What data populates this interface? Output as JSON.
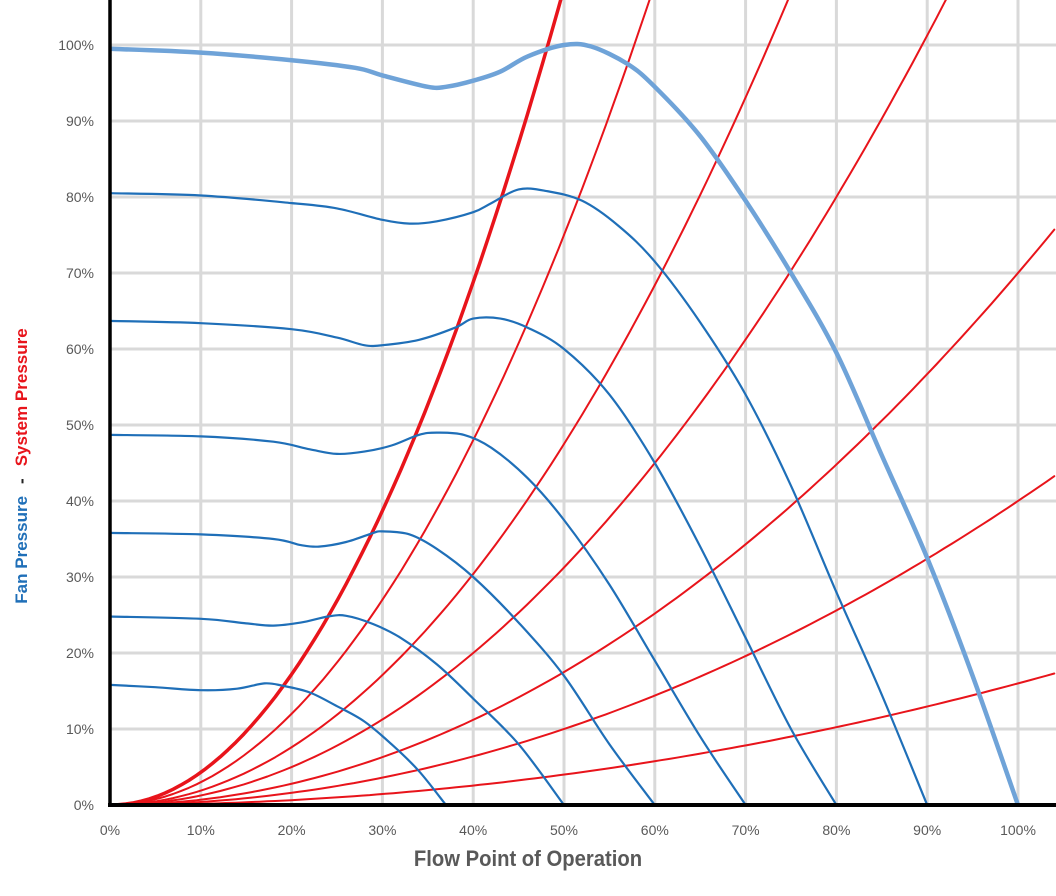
{
  "chart_data": {
    "type": "line",
    "xlabel": "Flow Point of Operation",
    "ylabel_parts": {
      "fan_word": "Fan",
      "fan_pressure": "Pressure",
      "separator": "-",
      "system_word": "System",
      "system_pressure": "Pressure"
    },
    "xlim": [
      0,
      1.04
    ],
    "ylim": [
      0,
      1.05
    ],
    "x_ticks": [
      0,
      0.1,
      0.2,
      0.3,
      0.4,
      0.5,
      0.6,
      0.7,
      0.8,
      0.9,
      1.0
    ],
    "x_tick_labels": [
      "0%",
      "10%",
      "20%",
      "30%",
      "40%",
      "50%",
      "60%",
      "70%",
      "80%",
      "90%",
      "100%"
    ],
    "y_ticks": [
      0,
      0.1,
      0.2,
      0.3,
      0.4,
      0.5,
      0.6,
      0.7,
      0.8,
      0.9,
      1.0
    ],
    "y_tick_labels": [
      "0%",
      "10%",
      "20%",
      "30%",
      "40%",
      "50%",
      "60%",
      "70%",
      "80%",
      "90%",
      "100%"
    ],
    "grid": true,
    "colors": {
      "fan": "#1f6fb8",
      "fan_full": "#6fa3d8",
      "system": "#e8141b",
      "grid": "#d9d9d9",
      "axis": "#000000"
    },
    "series": [
      {
        "kind": "fan",
        "emphasis": true,
        "points": [
          [
            0,
            0.995
          ],
          [
            0.1,
            0.99
          ],
          [
            0.2,
            0.98
          ],
          [
            0.27,
            0.97
          ],
          [
            0.3,
            0.96
          ],
          [
            0.35,
            0.945
          ],
          [
            0.37,
            0.945
          ],
          [
            0.4,
            0.953
          ],
          [
            0.43,
            0.965
          ],
          [
            0.46,
            0.985
          ],
          [
            0.5,
            1.0
          ],
          [
            0.53,
            0.998
          ],
          [
            0.57,
            0.975
          ],
          [
            0.6,
            0.945
          ],
          [
            0.65,
            0.88
          ],
          [
            0.7,
            0.795
          ],
          [
            0.75,
            0.7
          ],
          [
            0.8,
            0.595
          ],
          [
            0.85,
            0.46
          ],
          [
            0.9,
            0.325
          ],
          [
            0.95,
            0.17
          ],
          [
            1.0,
            0.0
          ]
        ]
      },
      {
        "kind": "fan",
        "points": [
          [
            0,
            0.805
          ],
          [
            0.1,
            0.802
          ],
          [
            0.2,
            0.792
          ],
          [
            0.25,
            0.785
          ],
          [
            0.3,
            0.77
          ],
          [
            0.33,
            0.765
          ],
          [
            0.36,
            0.768
          ],
          [
            0.4,
            0.78
          ],
          [
            0.42,
            0.792
          ],
          [
            0.45,
            0.81
          ],
          [
            0.48,
            0.808
          ],
          [
            0.52,
            0.795
          ],
          [
            0.56,
            0.762
          ],
          [
            0.6,
            0.715
          ],
          [
            0.65,
            0.635
          ],
          [
            0.7,
            0.54
          ],
          [
            0.75,
            0.42
          ],
          [
            0.8,
            0.28
          ],
          [
            0.85,
            0.145
          ],
          [
            0.9,
            0.0
          ]
        ]
      },
      {
        "kind": "fan",
        "points": [
          [
            0,
            0.637
          ],
          [
            0.1,
            0.634
          ],
          [
            0.2,
            0.626
          ],
          [
            0.25,
            0.615
          ],
          [
            0.28,
            0.605
          ],
          [
            0.3,
            0.605
          ],
          [
            0.34,
            0.612
          ],
          [
            0.38,
            0.628
          ],
          [
            0.4,
            0.64
          ],
          [
            0.43,
            0.64
          ],
          [
            0.46,
            0.628
          ],
          [
            0.5,
            0.6
          ],
          [
            0.55,
            0.54
          ],
          [
            0.6,
            0.45
          ],
          [
            0.65,
            0.34
          ],
          [
            0.7,
            0.22
          ],
          [
            0.75,
            0.1
          ],
          [
            0.8,
            0.0
          ]
        ]
      },
      {
        "kind": "fan",
        "points": [
          [
            0,
            0.487
          ],
          [
            0.1,
            0.485
          ],
          [
            0.18,
            0.478
          ],
          [
            0.22,
            0.468
          ],
          [
            0.25,
            0.462
          ],
          [
            0.28,
            0.465
          ],
          [
            0.31,
            0.473
          ],
          [
            0.34,
            0.487
          ],
          [
            0.36,
            0.49
          ],
          [
            0.39,
            0.487
          ],
          [
            0.42,
            0.47
          ],
          [
            0.46,
            0.43
          ],
          [
            0.5,
            0.375
          ],
          [
            0.55,
            0.29
          ],
          [
            0.6,
            0.19
          ],
          [
            0.65,
            0.09
          ],
          [
            0.7,
            0.0
          ]
        ]
      },
      {
        "kind": "fan",
        "points": [
          [
            0,
            0.358
          ],
          [
            0.1,
            0.356
          ],
          [
            0.18,
            0.35
          ],
          [
            0.21,
            0.342
          ],
          [
            0.23,
            0.34
          ],
          [
            0.26,
            0.346
          ],
          [
            0.29,
            0.358
          ],
          [
            0.3,
            0.36
          ],
          [
            0.33,
            0.356
          ],
          [
            0.36,
            0.337
          ],
          [
            0.4,
            0.3
          ],
          [
            0.45,
            0.24
          ],
          [
            0.5,
            0.17
          ],
          [
            0.55,
            0.08
          ],
          [
            0.6,
            0.0
          ]
        ]
      },
      {
        "kind": "fan",
        "points": [
          [
            0,
            0.248
          ],
          [
            0.1,
            0.245
          ],
          [
            0.15,
            0.239
          ],
          [
            0.18,
            0.236
          ],
          [
            0.21,
            0.24
          ],
          [
            0.24,
            0.248
          ],
          [
            0.26,
            0.249
          ],
          [
            0.29,
            0.238
          ],
          [
            0.32,
            0.22
          ],
          [
            0.36,
            0.185
          ],
          [
            0.4,
            0.14
          ],
          [
            0.45,
            0.08
          ],
          [
            0.5,
            0.0
          ]
        ]
      },
      {
        "kind": "fan",
        "points": [
          [
            0,
            0.158
          ],
          [
            0.05,
            0.155
          ],
          [
            0.1,
            0.151
          ],
          [
            0.14,
            0.153
          ],
          [
            0.17,
            0.16
          ],
          [
            0.19,
            0.157
          ],
          [
            0.22,
            0.148
          ],
          [
            0.25,
            0.13
          ],
          [
            0.28,
            0.11
          ],
          [
            0.31,
            0.08
          ],
          [
            0.34,
            0.045
          ],
          [
            0.37,
            0.0
          ]
        ]
      },
      {
        "kind": "system",
        "emphasis": true,
        "k": 4.3
      },
      {
        "kind": "system",
        "k": 3.0
      },
      {
        "kind": "system",
        "k": 1.9
      },
      {
        "kind": "system",
        "k": 1.25
      },
      {
        "kind": "system",
        "k": 0.7
      },
      {
        "kind": "system",
        "k": 0.4
      },
      {
        "kind": "system",
        "k": 0.16
      }
    ]
  }
}
